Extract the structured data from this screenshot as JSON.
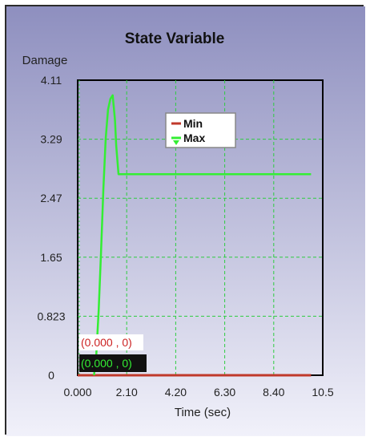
{
  "chart_data": {
    "type": "line",
    "title": "State Variable",
    "ylabel": "Damage",
    "xlabel": "Time (sec)",
    "xlim": [
      0.0,
      10.5
    ],
    "ylim": [
      0,
      4.11
    ],
    "x_ticks": [
      "0.000",
      "2.10",
      "4.20",
      "6.30",
      "8.40",
      "10.5"
    ],
    "y_ticks": [
      "0",
      "0.823",
      "1.65",
      "2.47",
      "3.29",
      "4.11"
    ],
    "grid": true,
    "legend_position": "top-center",
    "series": [
      {
        "name": "Min",
        "color": "#c0392b",
        "x": [
          0.0,
          10.0
        ],
        "y": [
          0.0,
          0.0
        ]
      },
      {
        "name": "Max",
        "color": "#33ee33",
        "x": [
          0.7,
          0.8,
          0.9,
          1.0,
          1.1,
          1.2,
          1.3,
          1.4,
          1.5,
          1.6,
          1.65,
          1.75,
          10.0
        ],
        "y": [
          0.0,
          0.3,
          0.9,
          1.7,
          2.6,
          3.3,
          3.7,
          3.85,
          3.9,
          3.55,
          3.2,
          2.8,
          2.8
        ]
      }
    ],
    "readouts": [
      {
        "text": "(0.000 , 0)",
        "color": "#cc2222",
        "background": "#ffffff"
      },
      {
        "text": "(0.000 , 0)",
        "color": "#33ee33",
        "background": "#111111"
      }
    ]
  },
  "colors": {
    "plot_gradient_top": "#8e8fbf",
    "plot_gradient_bottom": "#f1f1fa",
    "grid": "#2ecc40"
  }
}
